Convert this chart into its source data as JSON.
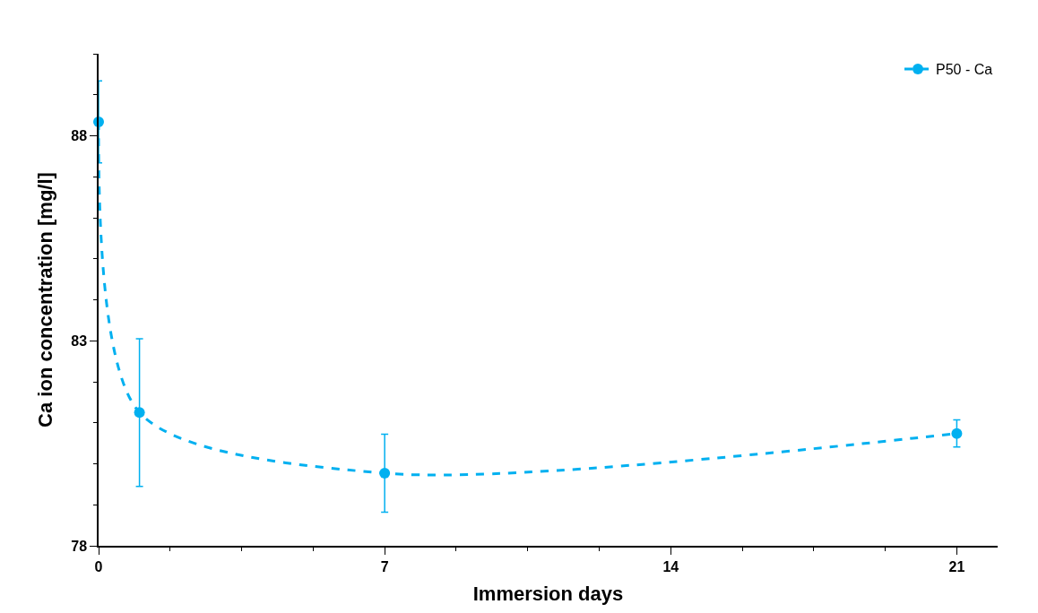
{
  "chart_data": {
    "type": "line",
    "xlabel": "Immersion days",
    "ylabel": "Ca ion concentration [mg/l]",
    "x": [
      0,
      1,
      7,
      21
    ],
    "series": [
      {
        "name": "P50 - Ca",
        "color": "#00b0f0",
        "values": [
          88.34,
          81.25,
          79.77,
          80.74
        ],
        "errors": [
          1.0,
          1.8,
          0.95,
          0.33
        ]
      }
    ],
    "xlim": [
      0,
      22
    ],
    "xticks": [
      0,
      7,
      14,
      21
    ],
    "ylim": [
      78,
      90
    ],
    "yticks": [
      78,
      83,
      88
    ],
    "legend": "top right",
    "marker": "circle",
    "line_style": "dashed"
  }
}
